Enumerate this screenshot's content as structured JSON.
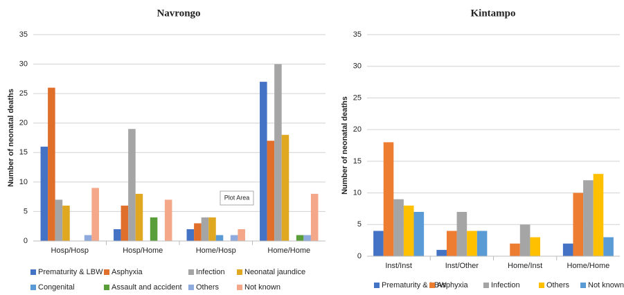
{
  "chart_data": [
    {
      "type": "bar",
      "title": "Navrongo",
      "y_label": "Number of neonatal deaths",
      "categories": [
        "Hosp/Hosp",
        "Hosp/Home",
        "Home/Hosp",
        "Home/Home"
      ],
      "series": [
        {
          "name": "Prematurity & LBW",
          "color": "#4472c4",
          "values": [
            16,
            2,
            2,
            27
          ]
        },
        {
          "name": "Asphyxia",
          "color": "#e06f2c",
          "values": [
            26,
            6,
            3,
            17
          ]
        },
        {
          "name": "Infection",
          "color": "#a5a5a5",
          "values": [
            7,
            19,
            4,
            30
          ]
        },
        {
          "name": "Neonatal jaundice",
          "color": "#e0a820",
          "values": [
            6,
            8,
            4,
            18
          ]
        },
        {
          "name": "Congenital",
          "color": "#5b9bd5",
          "values": [
            0,
            0,
            1,
            0
          ]
        },
        {
          "name": "Assault and accident",
          "color": "#5a9e3a",
          "values": [
            0,
            4,
            0,
            1
          ]
        },
        {
          "name": "Others",
          "color": "#8faadc",
          "values": [
            1,
            0,
            1,
            1
          ]
        },
        {
          "name": "Not known",
          "color": "#f4a889",
          "values": [
            9,
            7,
            2,
            8
          ]
        }
      ],
      "ylim": [
        0,
        35
      ],
      "yticks": [
        0,
        5,
        10,
        15,
        20,
        25,
        30,
        35
      ],
      "grid": true
    },
    {
      "type": "bar",
      "title": "Kintampo",
      "y_label": "Number of neonatal deaths",
      "categories": [
        "Inst/Inst",
        "Inst/Other",
        "Home/Inst",
        "Home/Home"
      ],
      "series": [
        {
          "name": "Prematurity & LBW",
          "color": "#4472c4",
          "values": [
            4,
            1,
            0,
            2
          ]
        },
        {
          "name": "Asphyxia",
          "color": "#ed7d31",
          "values": [
            18,
            4,
            2,
            10
          ]
        },
        {
          "name": "Infection",
          "color": "#a5a5a5",
          "values": [
            9,
            7,
            5,
            12
          ]
        },
        {
          "name": "Others",
          "color": "#ffc000",
          "values": [
            8,
            4,
            3,
            13
          ]
        },
        {
          "name": "Not known",
          "color": "#5b9bd5",
          "values": [
            7,
            4,
            0,
            3
          ]
        }
      ],
      "ylim": [
        0,
        35
      ],
      "yticks": [
        0,
        5,
        10,
        15,
        20,
        25,
        30,
        35
      ],
      "grid": true
    }
  ],
  "tooltip": "Plot Area"
}
